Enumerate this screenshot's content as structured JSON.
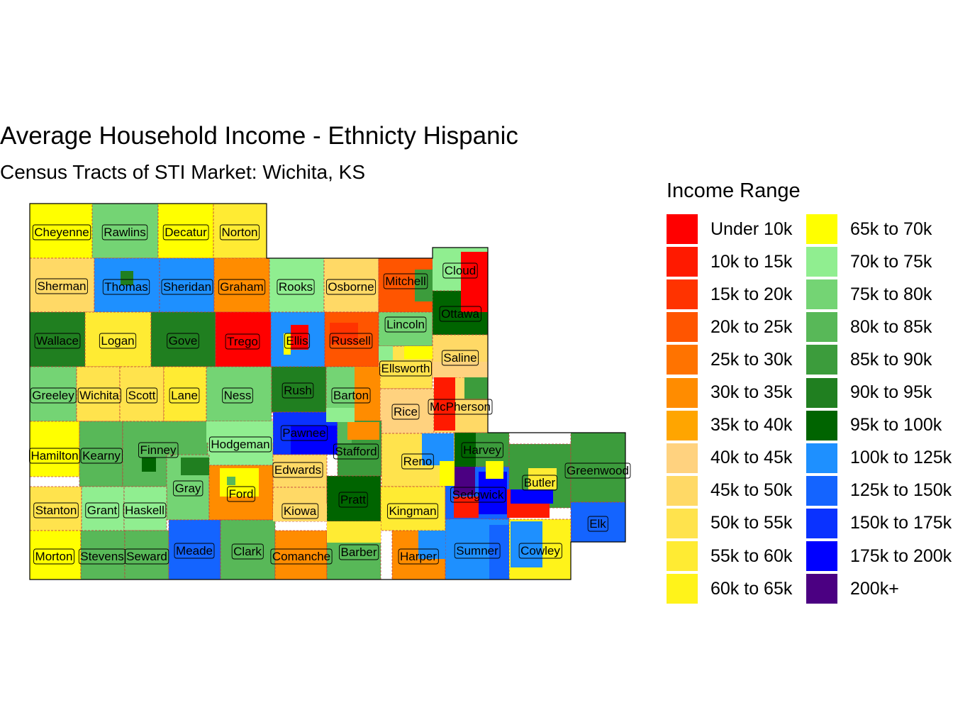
{
  "title": "Average Household Income - Ethnicty Hispanic",
  "subtitle": "Census Tracts of STI Market: Wichita, KS",
  "legend": {
    "title": "Income Range",
    "items": [
      {
        "label": "Under 10k",
        "color": "#ff0000"
      },
      {
        "label": "10k to 15k",
        "color": "#ff1a00"
      },
      {
        "label": "15k to 20k",
        "color": "#ff3300"
      },
      {
        "label": "20k to 25k",
        "color": "#ff5500"
      },
      {
        "label": "25k to 30k",
        "color": "#ff7300"
      },
      {
        "label": "30k to 35k",
        "color": "#ff8c00"
      },
      {
        "label": "35k to 40k",
        "color": "#ffa500"
      },
      {
        "label": "40k to 45k",
        "color": "#ffd27f"
      },
      {
        "label": "45k to 50k",
        "color": "#ffd966"
      },
      {
        "label": "50k to 55k",
        "color": "#ffe34d"
      },
      {
        "label": "55k to 60k",
        "color": "#ffeb33"
      },
      {
        "label": "60k to 65k",
        "color": "#fff31a"
      },
      {
        "label": "65k to 70k",
        "color": "#ffff00"
      },
      {
        "label": "70k to 75k",
        "color": "#90ee90"
      },
      {
        "label": "75k to 80k",
        "color": "#74d474"
      },
      {
        "label": "80k to 85k",
        "color": "#58b858"
      },
      {
        "label": "85k to 90k",
        "color": "#3c9c3c"
      },
      {
        "label": "90k to 95k",
        "color": "#207f20"
      },
      {
        "label": "95k to 100k",
        "color": "#006400"
      },
      {
        "label": "100k to 125k",
        "color": "#1e90ff"
      },
      {
        "label": "125k to 150k",
        "color": "#1464ff"
      },
      {
        "label": "150k to 175k",
        "color": "#0a32ff"
      },
      {
        "label": "175k to 200k",
        "color": "#0000ff"
      },
      {
        "label": "200k+",
        "color": "#4b0082"
      }
    ]
  },
  "counties": [
    {
      "name": "Cheyenne",
      "range": "65k to 70k"
    },
    {
      "name": "Rawlins",
      "range": "75k to 80k"
    },
    {
      "name": "Decatur",
      "range": "65k to 70k"
    },
    {
      "name": "Norton",
      "range": "55k to 60k"
    },
    {
      "name": "Sherman",
      "range": "45k to 50k"
    },
    {
      "name": "Thomas",
      "range": "100k to 125k"
    },
    {
      "name": "Sheridan",
      "range": "100k to 125k"
    },
    {
      "name": "Graham",
      "range": "30k to 35k"
    },
    {
      "name": "Rooks",
      "range": "70k to 75k"
    },
    {
      "name": "Osborne",
      "range": "45k to 50k"
    },
    {
      "name": "Mitchell",
      "range": "20k to 25k"
    },
    {
      "name": "Cloud",
      "range": "70k to 75k"
    },
    {
      "name": "Wallace",
      "range": "90k to 95k"
    },
    {
      "name": "Logan",
      "range": "55k to 60k"
    },
    {
      "name": "Gove",
      "range": "90k to 95k"
    },
    {
      "name": "Trego",
      "range": "Under 10k"
    },
    {
      "name": "Ellis",
      "range": "100k to 125k"
    },
    {
      "name": "Russell",
      "range": "20k to 25k"
    },
    {
      "name": "Lincoln",
      "range": "75k to 80k"
    },
    {
      "name": "Ottawa",
      "range": "95k to 100k"
    },
    {
      "name": "Ellsworth",
      "range": "50k to 55k"
    },
    {
      "name": "Saline",
      "range": "45k to 50k"
    },
    {
      "name": "Greeley",
      "range": "75k to 80k"
    },
    {
      "name": "Wichita",
      "range": "50k to 55k"
    },
    {
      "name": "Scott",
      "range": "50k to 55k"
    },
    {
      "name": "Lane",
      "range": "55k to 60k"
    },
    {
      "name": "Ness",
      "range": "75k to 80k"
    },
    {
      "name": "Rush",
      "range": "90k to 95k"
    },
    {
      "name": "Barton",
      "range": "75k to 80k"
    },
    {
      "name": "Rice",
      "range": "40k to 45k"
    },
    {
      "name": "McPherson",
      "range": "45k to 50k"
    },
    {
      "name": "Hamilton",
      "range": "65k to 70k"
    },
    {
      "name": "Kearny",
      "range": "80k to 85k"
    },
    {
      "name": "Finney",
      "range": "80k to 85k"
    },
    {
      "name": "Hodgeman",
      "range": "70k to 75k"
    },
    {
      "name": "Pawnee",
      "range": "150k to 175k"
    },
    {
      "name": "Stafford",
      "range": "85k to 90k"
    },
    {
      "name": "Reno",
      "range": "50k to 55k"
    },
    {
      "name": "Harvey",
      "range": "85k to 90k"
    },
    {
      "name": "Butler",
      "range": "85k to 90k"
    },
    {
      "name": "Greenwood",
      "range": "85k to 90k"
    },
    {
      "name": "Gray",
      "range": "75k to 80k"
    },
    {
      "name": "Edwards",
      "range": "45k to 50k"
    },
    {
      "name": "Ford",
      "range": "30k to 35k"
    },
    {
      "name": "Stanton",
      "range": "50k to 55k"
    },
    {
      "name": "Grant",
      "range": "70k to 75k"
    },
    {
      "name": "Haskell",
      "range": "70k to 75k"
    },
    {
      "name": "Kiowa",
      "range": "45k to 50k"
    },
    {
      "name": "Pratt",
      "range": "95k to 100k"
    },
    {
      "name": "Kingman",
      "range": "55k to 60k"
    },
    {
      "name": "Sedgwick",
      "range": "125k to 150k"
    },
    {
      "name": "Elk",
      "range": "125k to 150k"
    },
    {
      "name": "Morton",
      "range": "65k to 70k"
    },
    {
      "name": "Stevens",
      "range": "80k to 85k"
    },
    {
      "name": "Seward",
      "range": "80k to 85k"
    },
    {
      "name": "Meade",
      "range": "125k to 150k"
    },
    {
      "name": "Clark",
      "range": "80k to 85k"
    },
    {
      "name": "Comanche",
      "range": "30k to 35k"
    },
    {
      "name": "Barber",
      "range": "80k to 85k"
    },
    {
      "name": "Harper",
      "range": "30k to 35k"
    },
    {
      "name": "Sumner",
      "range": "100k to 125k"
    },
    {
      "name": "Cowley",
      "range": "60k to 65k"
    }
  ]
}
